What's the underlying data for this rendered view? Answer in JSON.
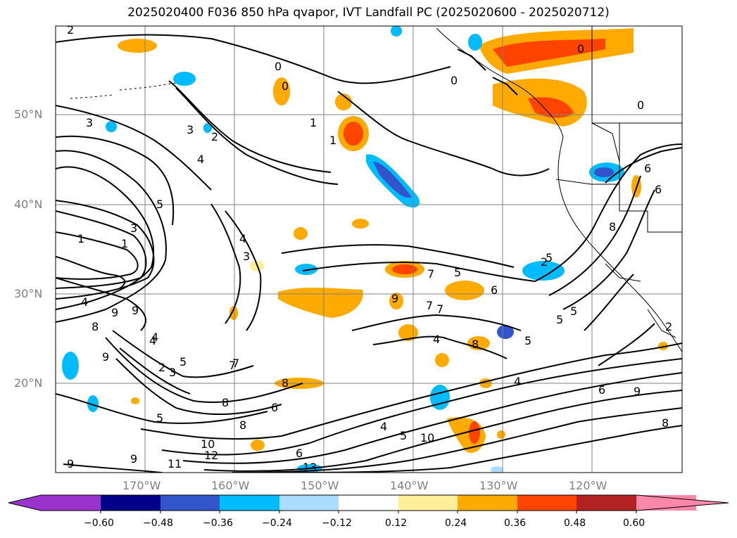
{
  "title": "2025020400 F036 850 hPa qvapor, IVT Landfall PC (2025020600 - 2025020712)",
  "lat_labels": [
    "50°N",
    "40°N",
    "30°N",
    "20°N"
  ],
  "lon_labels": [
    "170°W",
    "160°W",
    "150°W",
    "140°W",
    "130°W",
    "120°W"
  ],
  "colorbar": {
    "ticks": [
      "−0.60",
      "−0.48",
      "−0.36",
      "−0.24",
      "−0.12",
      "0.12",
      "0.24",
      "0.36",
      "0.48",
      "0.60"
    ],
    "colors": [
      "#9933cc",
      "#000088",
      "#3355cc",
      "#00bbff",
      "#aaddff",
      "#ffffff",
      "#ffee99",
      "#ffaa00",
      "#ff4400",
      "#b22222",
      "#ff88aa"
    ]
  },
  "contour_labels": [
    "2",
    "0",
    "0",
    "1",
    "0",
    "6",
    "3",
    "3",
    "2",
    "4",
    "1",
    "5",
    "3",
    "1",
    "0",
    "4",
    "3",
    "7",
    "6",
    "5",
    "2",
    "5",
    "5",
    "5",
    "4",
    "9",
    "9",
    "8",
    "4",
    "2",
    "5",
    "3",
    "9",
    "7",
    "8",
    "6",
    "8",
    "5",
    "8",
    "6",
    "4",
    "10",
    "12",
    "11",
    "9",
    "9",
    "13",
    "10",
    "8",
    "5",
    "4",
    "6",
    "9",
    "8",
    "5",
    "2",
    "9",
    "4",
    "8",
    "7",
    "7",
    "7",
    "6",
    "1",
    "0",
    "4"
  ],
  "colors": {
    "contour": "#000000",
    "grid": "#808080",
    "map_border": "#000000"
  }
}
